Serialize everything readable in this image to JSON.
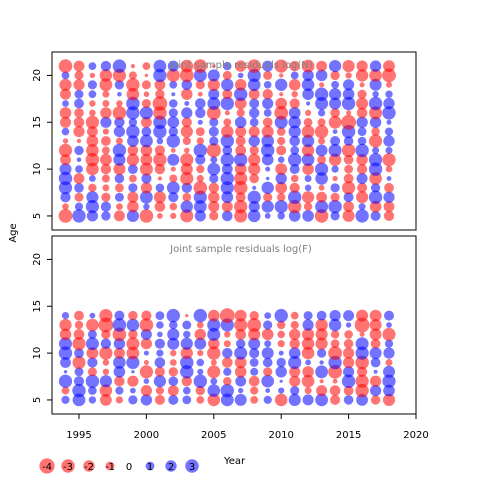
{
  "chart_data": {
    "type": "scatter",
    "subtype": "bubble-residuals",
    "shared_x": {
      "label": "Year",
      "range": [
        1993,
        2020
      ],
      "ticks": [
        1995,
        2000,
        2005,
        2010,
        2015,
        2020
      ],
      "years_first": 1994,
      "years_last": 2018
    },
    "ylabel": "Age",
    "colors": {
      "negative": "#ff0000",
      "positive": "#0000ff",
      "fill_opacity": 0.55,
      "frame": "#000000",
      "title": "#808080"
    },
    "panels": [
      {
        "title": "Joint sample residuals log(N)",
        "ages": [
          5,
          21
        ],
        "ylim": [
          3.5,
          22.5
        ],
        "yticks": [
          5,
          10,
          15,
          20
        ],
        "note": "residuals for ages 5-21, years 1994-2018; magnitudes roughly -4..3"
      },
      {
        "title": "Joint sample residuals log(F)",
        "ages": [
          5,
          14
        ],
        "ylim": [
          3.5,
          22.5
        ],
        "yticks": [
          5,
          10,
          15,
          20
        ],
        "note": "residuals for ages 5-14, years 1994-2018; magnitudes roughly -4..3"
      }
    ],
    "legend": {
      "values": [
        -4,
        -3,
        -2,
        -1,
        0,
        1,
        2,
        3
      ],
      "labels": [
        "-4",
        "-3",
        "-2",
        "-1",
        "0",
        "1",
        "2",
        "3"
      ]
    },
    "grid": false
  }
}
